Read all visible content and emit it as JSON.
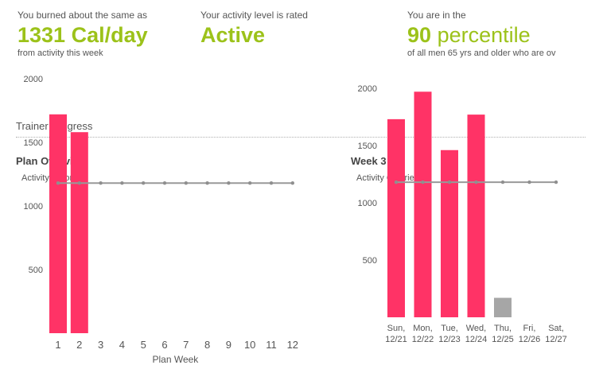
{
  "stats": [
    {
      "pre": "You burned about the same as",
      "value": "1331",
      "unit": "Cal/day",
      "post": "from activity this week"
    },
    {
      "pre": "Your activity level is rated",
      "value": "Active",
      "unit": "",
      "post": ""
    },
    {
      "pre": "You are in the",
      "value": "90",
      "unit": "percentile",
      "post": "of all men 65 yrs and older who are ov"
    }
  ],
  "section": {
    "title": "Trainer Progress"
  },
  "colors": {
    "accent": "#9cc21a",
    "bar": "#ff3366",
    "bar_low": "#a6a6a6",
    "target_line": "#999999"
  },
  "chart_data": [
    {
      "type": "bar",
      "title": "Plan Overview",
      "ylabel": "Activity Calories",
      "xlabel": "Plan Week",
      "categories": [
        "1",
        "2",
        "3",
        "4",
        "5",
        "6",
        "7",
        "8",
        "9",
        "10",
        "11",
        "12"
      ],
      "values": [
        1720,
        1580,
        0,
        0,
        0,
        0,
        0,
        0,
        0,
        0,
        0,
        0
      ],
      "target": [
        1180,
        1180,
        1180,
        1180,
        1180,
        1180,
        1180,
        1180,
        1180,
        1180,
        1180,
        1180
      ],
      "yticks": [
        500,
        1000,
        1500,
        2000
      ],
      "ylim": [
        0,
        2000
      ]
    },
    {
      "type": "bar",
      "title": "Week 3",
      "ylabel": "Activity Calories",
      "xlabel": "",
      "categories": [
        [
          "Sun,",
          "12/21"
        ],
        [
          "Mon,",
          "12/22"
        ],
        [
          "Tue,",
          "12/23"
        ],
        [
          "Wed,",
          "12/24"
        ],
        [
          "Thu,",
          "12/25"
        ],
        [
          "Fri,",
          "12/26"
        ],
        [
          "Sat,",
          "12/27"
        ]
      ],
      "values": [
        1730,
        1970,
        1460,
        1770,
        170,
        0,
        0
      ],
      "highlight": [
        true,
        true,
        true,
        true,
        false,
        false,
        false
      ],
      "target": [
        1180,
        1180,
        1180,
        1180,
        1180,
        1180,
        1180
      ],
      "yticks": [
        500,
        1000,
        1500,
        2000
      ],
      "ylim": [
        0,
        2000
      ]
    }
  ]
}
